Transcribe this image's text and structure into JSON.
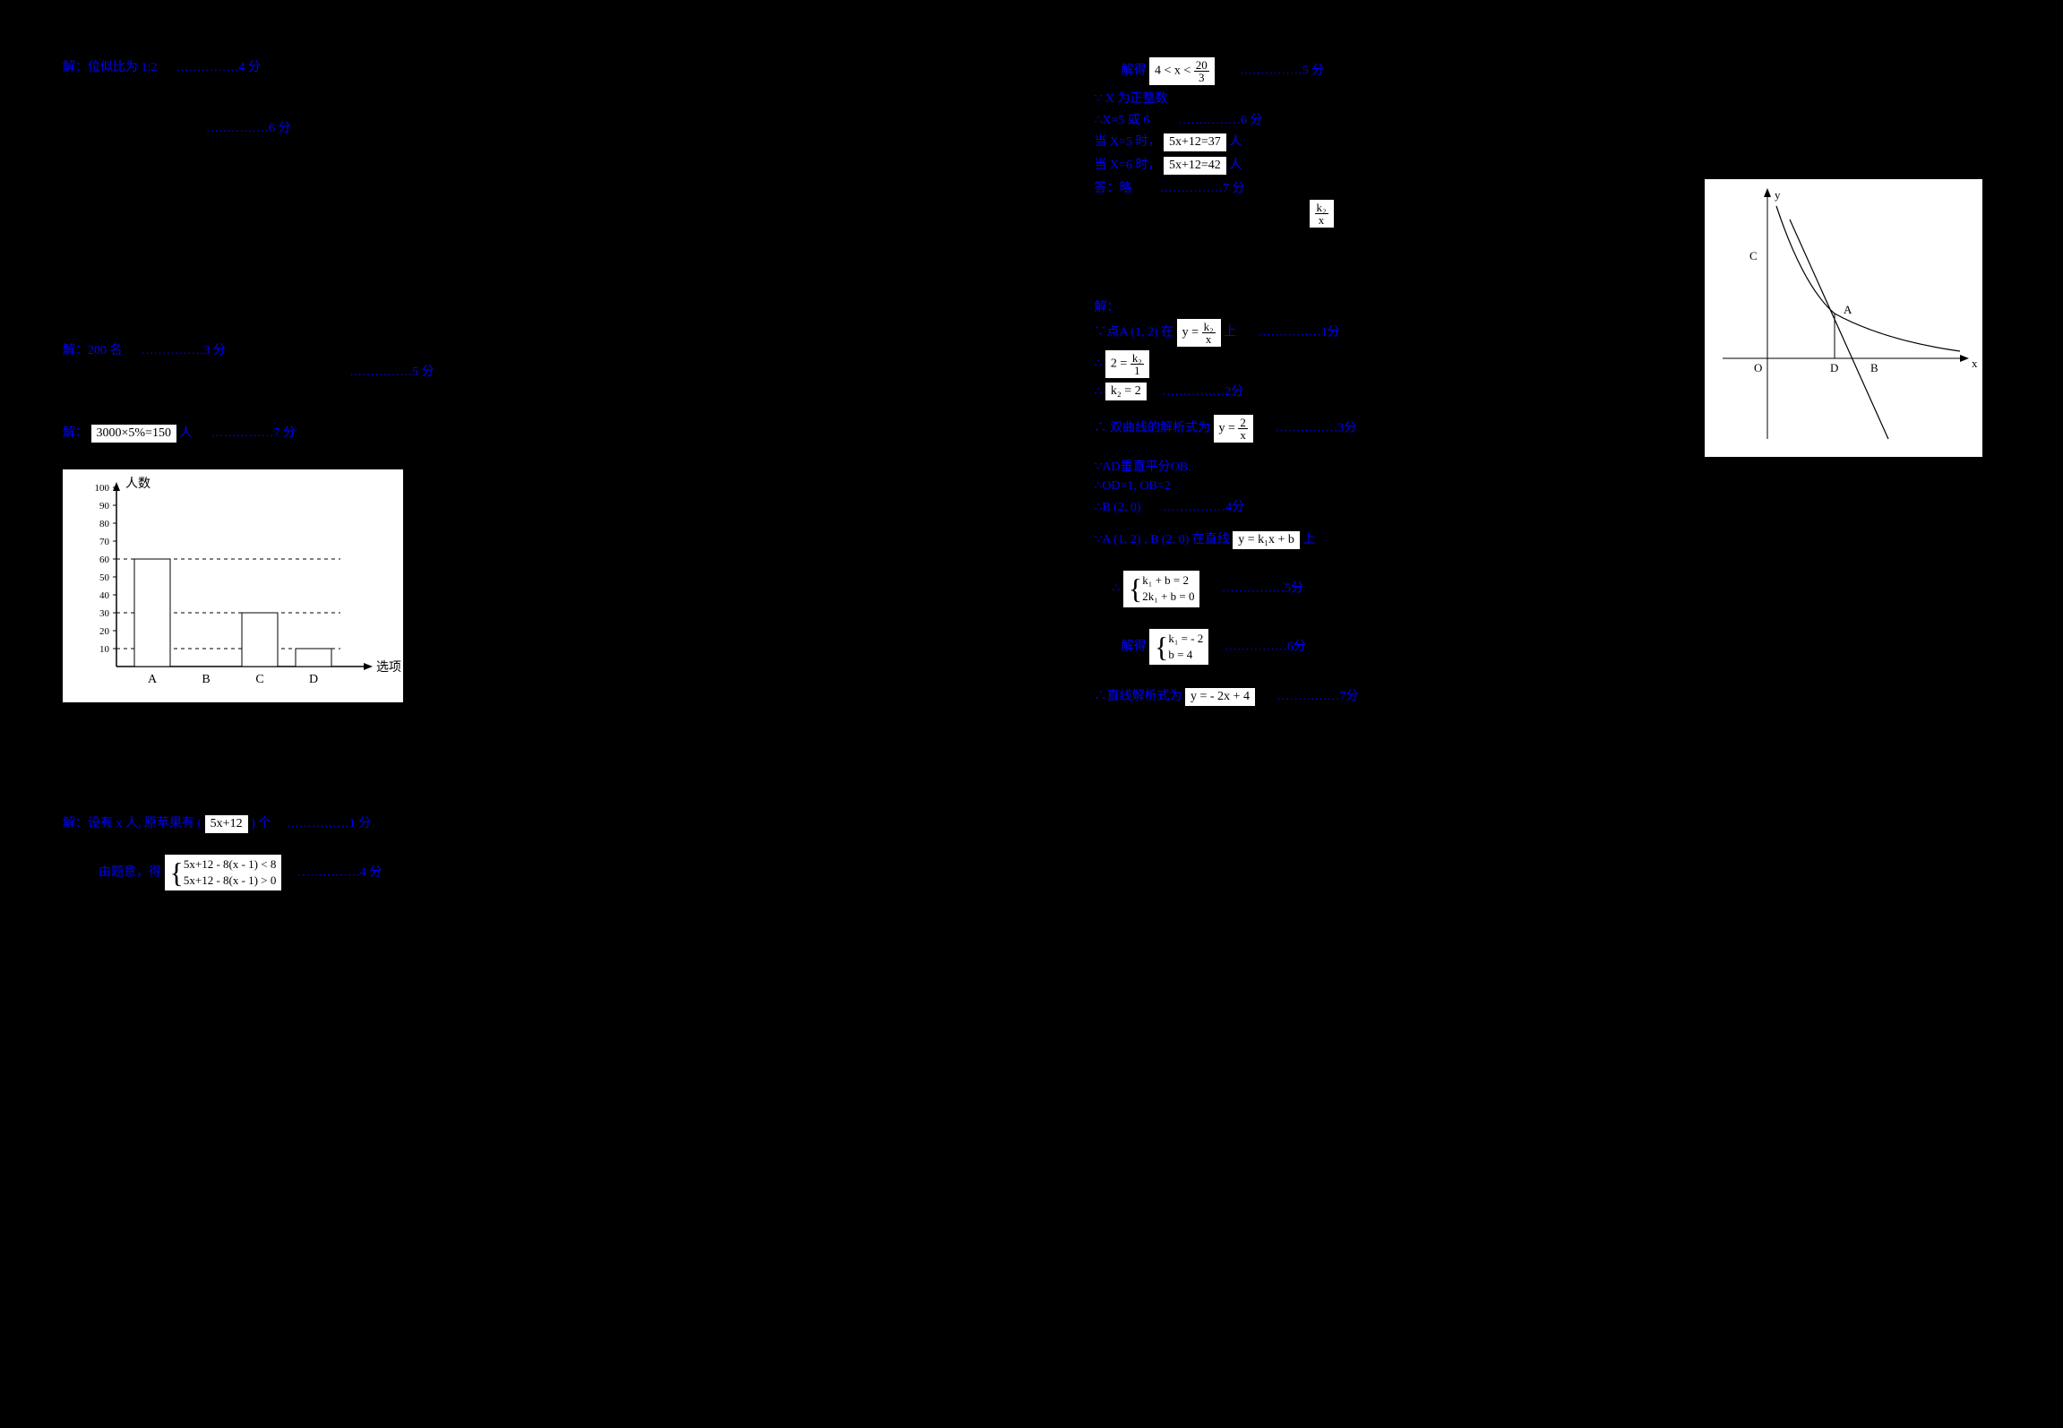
{
  "left": {
    "l1_prefix": "解：位似比为 1:2",
    "l1_dots": "……………4 分",
    "l2_dots": "……………6 分",
    "l3_prefix": "解：200 名",
    "l3_dots": "……………3 分",
    "l4_dots": "……………5 分",
    "l5_prefix": "解：",
    "l5_math": "3000×5%=150",
    "l5_suffix": "人",
    "l5_dots": "……………7 分",
    "l6_prefix": "解：设有 x 人,  原苹果有 (",
    "l6_math": "5x+12",
    "l6_suffix": ") 个",
    "l6_dots": "……………1 分",
    "l7_prefix": "由题意，得",
    "l7_eq1": "5x+12 - 8(x - 1) < 8",
    "l7_eq2": "5x+12 - 8(x - 1) > 0",
    "l7_dots": "……………4 分"
  },
  "right": {
    "r1_prefix": "解得 ",
    "r1_math_lhs": "4 < x < ",
    "r1_frac_num": "20",
    "r1_frac_den": "3",
    "r1_dots": "……………5 分",
    "r2": "∵ X 为正整数",
    "r3_prefix": "∴X=5 或 6",
    "r3_dots": "……………6 分",
    "r4_prefix": "当 X=5 时，",
    "r4_math": "5x+12=37",
    "r4_suffix": "人",
    "r5_prefix": "当 X=6 时，",
    "r5_math": "5x+12=42",
    "r5_suffix": "人",
    "r6_prefix": "答：略",
    "r6_dots": "……………7 分",
    "r7_num": "k₂",
    "r7_den": "x",
    "r8": "解：",
    "r9_prefix": "∵点A (1, 2) 在",
    "r9_math_lhs": "y = ",
    "r9_num": "k₂",
    "r9_den": "x",
    "r9_suffix": "上",
    "r9_dots": "……………1分",
    "r10_prefix": "∴",
    "r10_lhs": "2 = ",
    "r10_num": "k₂",
    "r10_den": "1",
    "r11_prefix": "∴",
    "r11_math": "k₂ = 2",
    "r11_dots": "……………2分",
    "r12_prefix": "∴ 双曲线的解析式为",
    "r12_lhs": "y = ",
    "r12_num": "2",
    "r12_den": "x",
    "r12_dots": "……………3分",
    "r13": "∵AD垂直平分OB.",
    "r14": "∴OD=1, OB=2",
    "r15_prefix": "∴B (2, 0)",
    "r15_dots": "……………4分",
    "r16_prefix": "∵A (1, 2) , B (2, 0) 在直线",
    "r16_math": "y = k₁x + b",
    "r16_suffix": "上",
    "r17_prefix": "∴",
    "r17_eq1": "k₁ + b = 2",
    "r17_eq2": "2k₁ + b = 0",
    "r17_dots": "……………5分",
    "r18_prefix": "解得",
    "r18_eq1": "k₁ = - 2",
    "r18_eq2": "b = 4",
    "r18_dots": "……………6分",
    "r19_prefix": "∴直线解析式为",
    "r19_math": "y = - 2x + 4",
    "r19_dots": "……………7分"
  },
  "chart": {
    "y_label": "人数",
    "x_label": "选项",
    "y_ticks": [
      "100",
      "90",
      "80",
      "70",
      "60",
      "50",
      "40",
      "30",
      "20",
      "10"
    ],
    "x_ticks": [
      "A",
      "B",
      "C",
      "D"
    ],
    "bars": [
      60,
      0,
      30,
      10
    ],
    "dashed": [
      60,
      30,
      10
    ]
  },
  "graph": {
    "labels": {
      "y": "y",
      "x": "x",
      "O": "O",
      "A": "A",
      "B": "B",
      "C": "C",
      "D": "D"
    }
  },
  "colors": {
    "blue": "#0000ff",
    "black": "#000000",
    "white": "#ffffff"
  }
}
